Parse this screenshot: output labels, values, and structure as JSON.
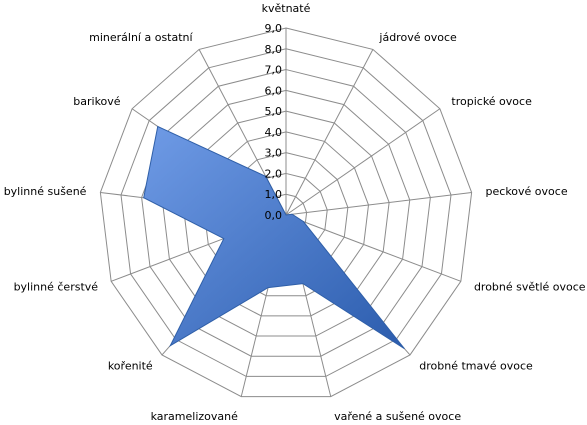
{
  "chart_data": {
    "type": "radar",
    "title": "",
    "categories": [
      "květnaté",
      "jádrové ovoce",
      "tropické ovoce",
      "peckové ovoce",
      "drobné světlé ovoce",
      "drobné tmavé ovoce",
      "vařené a sušené ovoce",
      "karamelizované",
      "kořenité",
      "bylinné čerstvé",
      "bylinné sušené",
      "barikové",
      "minerální a ostatní"
    ],
    "tick_labels": [
      "0,0",
      "1,0",
      "2,0",
      "3,0",
      "4,0",
      "5,0",
      "6,0",
      "7,0",
      "8,0",
      "9,0"
    ],
    "r_range": [
      0,
      9
    ],
    "grid": true,
    "legend": "none",
    "series": [
      {
        "values": [
          0,
          0,
          0,
          0.3,
          0.9,
          8.6,
          3.4,
          3.6,
          8.4,
          3.2,
          6.9,
          7.5,
          2.1
        ],
        "color": "#3d74cf",
        "gradient": [
          "#6f9be6",
          "#2b5cad"
        ]
      }
    ]
  }
}
